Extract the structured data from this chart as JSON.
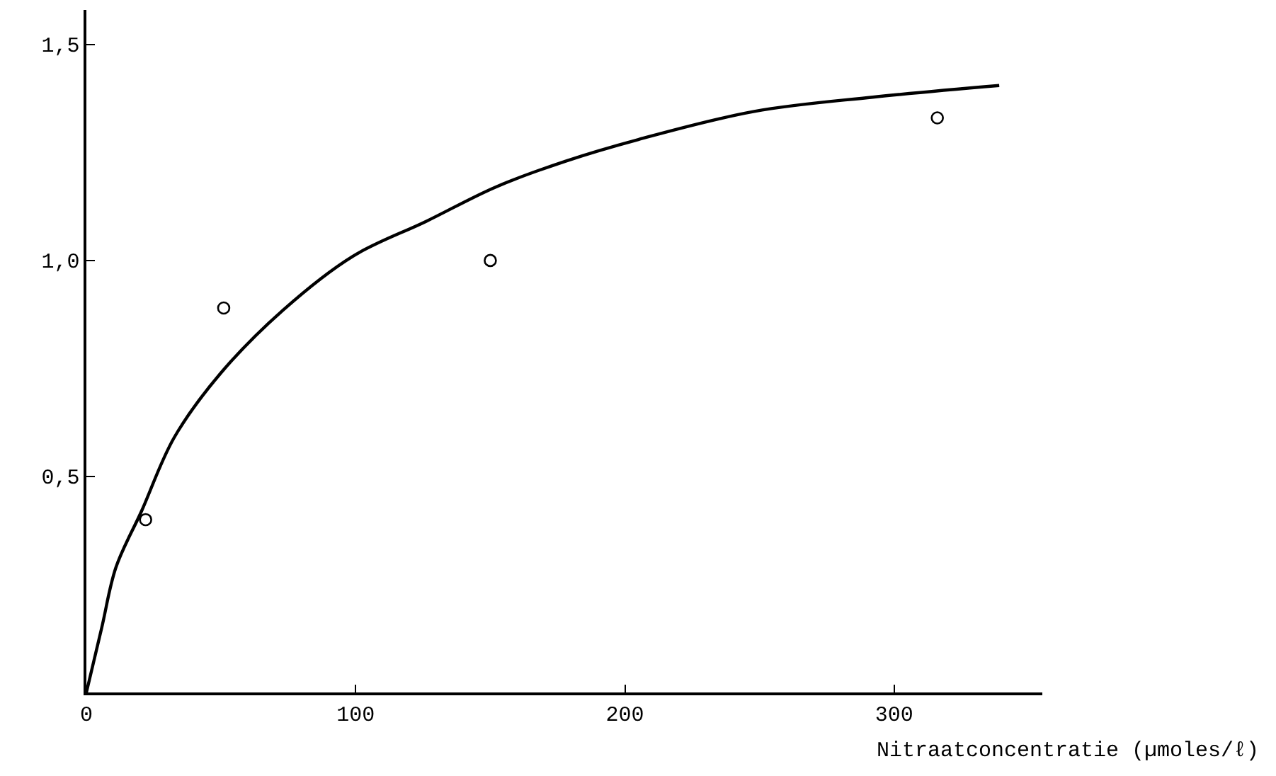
{
  "chart_data": {
    "type": "scatter",
    "xlabel": "Nitraatconcentratie (µmoles/ℓ)",
    "xlim": [
      0,
      355
    ],
    "ylim": [
      0,
      1.58
    ],
    "xticks": [
      0,
      100,
      200,
      300
    ],
    "yticks": [
      {
        "value": 0.5,
        "label": "0,5"
      },
      {
        "value": 1,
        "label": "1,0"
      },
      {
        "value": 1.5,
        "label": "1,5"
      }
    ],
    "grid": false,
    "legend": false,
    "series": [
      {
        "marker": "circle",
        "color": "#000000",
        "x": [
          22,
          51,
          150,
          316
        ],
        "values": [
          0.4,
          0.89,
          1.0,
          1.33
        ]
      },
      {
        "type": "line",
        "line_style": "solid",
        "color": "#000000",
        "x": [
          0,
          5.7,
          11,
          20.5,
          32.6,
          50,
          73,
          99,
          126,
          152,
          178,
          205,
          248,
          292,
          339
        ],
        "values": [
          0,
          0.15,
          0.29,
          0.42,
          0.59,
          0.74,
          0.885,
          1.01,
          1.09,
          1.17,
          1.23,
          1.28,
          1.345,
          1.378,
          1.405
        ]
      }
    ]
  }
}
